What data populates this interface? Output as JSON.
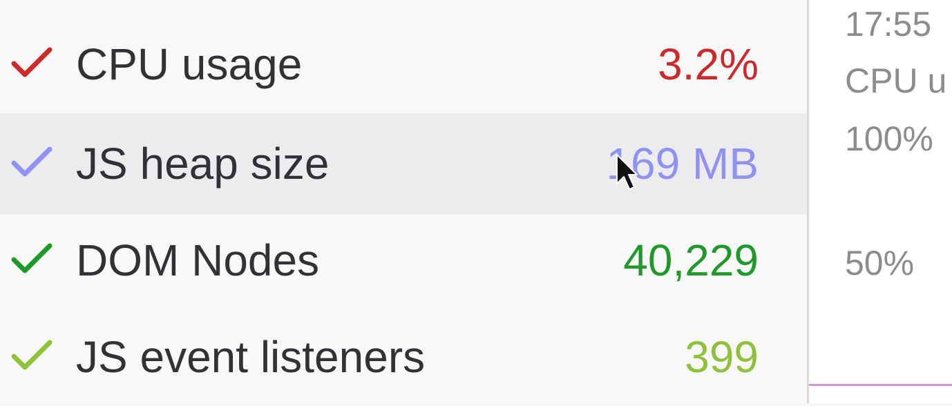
{
  "metrics": [
    {
      "label": "CPU usage",
      "value": "3.2%",
      "color": "#cc2a2a",
      "checked": true
    },
    {
      "label": "JS heap size",
      "value": "169 MB",
      "color": "#8f92f2",
      "checked": true
    },
    {
      "label": "DOM Nodes",
      "value": "40,229",
      "color": "#1f9a2a",
      "checked": true
    },
    {
      "label": "JS event listeners",
      "value": "399",
      "color": "#8fc13b",
      "checked": true
    }
  ],
  "chart": {
    "time": "17:55",
    "series_label": "CPU u",
    "tick_100": "100%",
    "tick_50": "50%",
    "line_color": "#d98ee0"
  },
  "icons": {
    "check": "check-icon",
    "cursor": "mouse-pointer-icon"
  }
}
